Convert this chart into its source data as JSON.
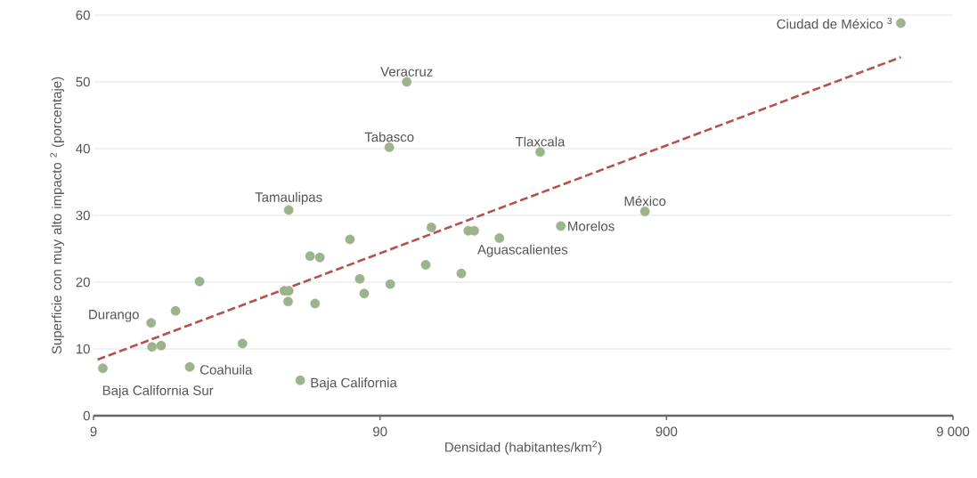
{
  "chart_data": {
    "type": "scatter",
    "xlabel": "Densidad (habitantes/km$^{2}$)",
    "ylabel": "Superficie con muy alto impacto $^{2}$ (porcentaje)",
    "log": "x",
    "grid": "y",
    "xlim": [
      9,
      9000
    ],
    "ylim": [
      0,
      60
    ],
    "xticks": [
      9,
      90,
      900,
      {
        "value": 9000,
        "label": "9 000"
      }
    ],
    "yticks": [
      0,
      10,
      20,
      30,
      40,
      50,
      60
    ],
    "series": [
      {
        "marker": "circle",
        "color": "#9db38e",
        "x": [
          9.7,
          14.3,
          14.4,
          15.5,
          17.4,
          19.5,
          21.1,
          29.8,
          41.7,
          43.2,
          43,
          43.2,
          47.4,
          51.3,
          55.5,
          53.4,
          70.7,
          76.5,
          79.3,
          97.7,
          97,
          111.6,
          130,
          136,
          173,
          183,
          192,
          235,
          326,
          385,
          757,
          5920
        ],
        "values": [
          7.1,
          13.9,
          10.3,
          10.5,
          15.7,
          7.3,
          20.1,
          10.8,
          18.7,
          18.7,
          17.1,
          30.8,
          5.3,
          23.9,
          23.7,
          16.8,
          26.4,
          20.5,
          18.3,
          19.7,
          40.2,
          50.0,
          22.6,
          28.2,
          21.3,
          27.7,
          27.7,
          26.6,
          39.5,
          28.4,
          30.6,
          58.8
        ]
      },
      {
        "type": "line",
        "marker": "none",
        "color": "#b5524c",
        "line_style": "dashed",
        "x": [
          9.3,
          5920
        ],
        "values": [
          8.4,
          53.7
        ]
      }
    ],
    "annotations": [
      {
        "text": "Baja California Sur",
        "x": 9.7,
        "y": 7.1
      },
      {
        "text": "Durango",
        "x": 14.3,
        "y": 13.9
      },
      {
        "text": "Coahuila",
        "x": 19.5,
        "y": 7.3
      },
      {
        "text": "Baja California",
        "x": 47.4,
        "y": 5.3
      },
      {
        "text": "Tamaulipas",
        "x": 43.2,
        "y": 30.8
      },
      {
        "text": "Veracruz",
        "x": 111.6,
        "y": 50.0
      },
      {
        "text": "Tabasco",
        "x": 97,
        "y": 40.2
      },
      {
        "text": "Tlaxcala",
        "x": 326,
        "y": 39.5
      },
      {
        "text": "Morelos",
        "x": 385,
        "y": 28.4
      },
      {
        "text": "Aguascalientes",
        "x": 235,
        "y": 26.6
      },
      {
        "text": "México",
        "x": 757,
        "y": 30.6
      },
      {
        "text": "Ciudad de México $^{3}$",
        "x": 5920,
        "y": 58.8
      }
    ]
  }
}
